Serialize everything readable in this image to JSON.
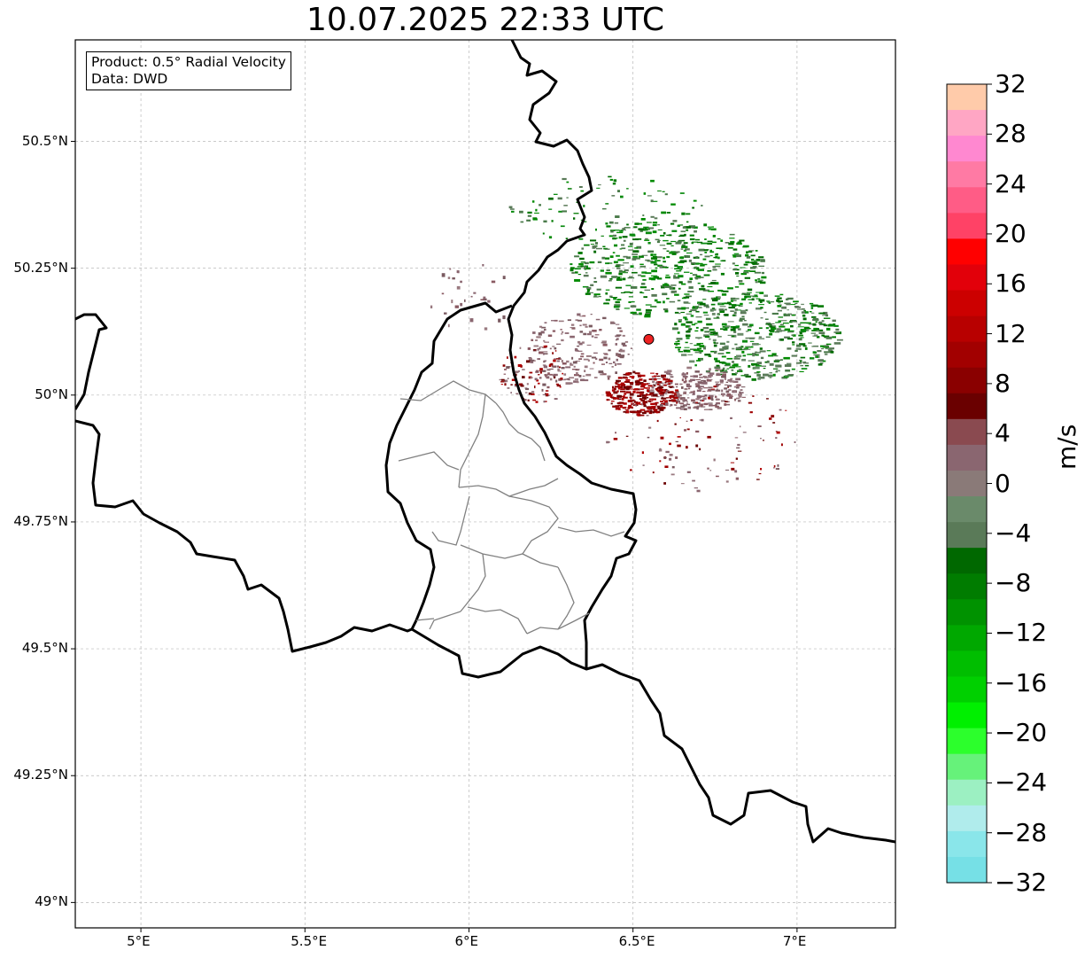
{
  "title": "10.07.2025 22:33 UTC",
  "info": {
    "product": "Product: 0.5° Radial Velocity",
    "source": "Data: DWD"
  },
  "map": {
    "lon_range": [
      4.8,
      7.3
    ],
    "lat_range": [
      48.95,
      50.7
    ],
    "x_ticks": [
      "5°E",
      "5.5°E",
      "6°E",
      "6.5°E",
      "7°E"
    ],
    "y_ticks": [
      "50.5°N",
      "50.25°N",
      "50°N",
      "49.75°N",
      "49.5°N",
      "49.25°N",
      "49°N"
    ],
    "radar_site": {
      "lon": 6.548,
      "lat": 50.11,
      "color": "#ee2222"
    }
  },
  "colorbar": {
    "unit": "m/s",
    "range": [
      -32,
      32
    ],
    "labels": [
      "32",
      "28",
      "24",
      "20",
      "16",
      "12",
      "8",
      "4",
      "0",
      "−4",
      "−8",
      "−12",
      "−16",
      "−20",
      "−24",
      "−28",
      "−32"
    ],
    "colors_top_to_bottom": [
      "#ffcbaa",
      "#ffa6c4",
      "#ff88d0",
      "#ff7aa4",
      "#ff5c86",
      "#ff4266",
      "#ff0000",
      "#e2000a",
      "#cc0000",
      "#b80000",
      "#a20000",
      "#8a0000",
      "#6a0000",
      "#8a4a50",
      "#8a6670",
      "#8a7a78",
      "#6a8a6a",
      "#5a7a58",
      "#006800",
      "#007c00",
      "#009200",
      "#00a800",
      "#00be00",
      "#00d000",
      "#00f000",
      "#2cff2c",
      "#66f27a",
      "#9cf0c2",
      "#b0ecec",
      "#8ae6ea",
      "#76e0e6"
    ]
  }
}
